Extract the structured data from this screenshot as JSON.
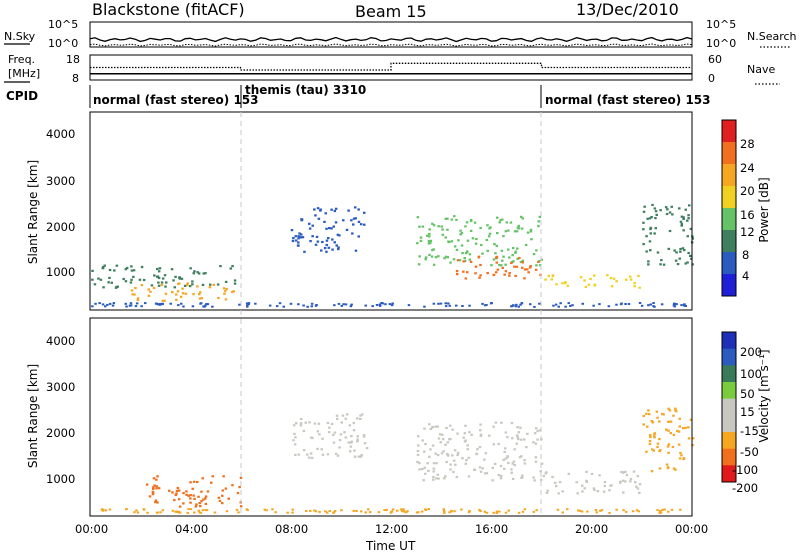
{
  "header": {
    "station": "Blackstone (fitACF)",
    "beam": "Beam 15",
    "date": "13/Dec/2010"
  },
  "noise_panel": {
    "left_label": "N.Sky",
    "right_label": "N.Search",
    "left_ticks": [
      "10^5",
      "10^0"
    ],
    "right_ticks": [
      "10^5",
      "10^0"
    ]
  },
  "freq_panel": {
    "left_label_1": "Freq.",
    "left_label_2": "[MHz]",
    "right_label": "Nave",
    "left_ticks": [
      "18",
      "8"
    ],
    "right_ticks": [
      "60",
      "0"
    ]
  },
  "cpid_panel": {
    "label": "CPID",
    "segments": [
      {
        "text": "normal (fast stereo) 153",
        "start_hour": 0,
        "end_hour": 6
      },
      {
        "text": "themis (tau) 3310",
        "start_hour": 6,
        "end_hour": 18
      },
      {
        "text": "normal (fast stereo) 153",
        "start_hour": 18,
        "end_hour": 24
      }
    ]
  },
  "power_panel": {
    "ylabel": "Slant Range [km]",
    "yticks": [
      "4000",
      "3000",
      "2000",
      "1000"
    ],
    "colorbar_label": "Power [dB]",
    "colorbar_ticks": [
      "28",
      "24",
      "20",
      "16",
      "12",
      "8",
      "4"
    ]
  },
  "velocity_panel": {
    "ylabel": "Slant Range [km]",
    "yticks": [
      "4000",
      "3000",
      "2000",
      "1000"
    ],
    "colorbar_label": "Velocity [m s⁻¹]",
    "colorbar_ticks": [
      "200",
      "100",
      "50",
      "15",
      "-15",
      "-50",
      "-100",
      "-200"
    ]
  },
  "xaxis": {
    "label": "Time UT",
    "ticks": [
      "00:00",
      "04:00",
      "08:00",
      "12:00",
      "16:00",
      "20:00",
      "00:00"
    ]
  },
  "colors": {
    "power_scale": [
      "#1f1fd8",
      "#2a5bbf",
      "#3f7f5f",
      "#66c266",
      "#f0d020",
      "#f5a623",
      "#f07020",
      "#e02020"
    ],
    "velocity_scale": [
      "#e01a1a",
      "#f0701e",
      "#f5a623",
      "#c8c8c0",
      "#c8c8c0",
      "#7acc3e",
      "#3a7a5a",
      "#2a5bbf",
      "#1f2fb8"
    ]
  },
  "chart_data": [
    {
      "type": "line",
      "title": "Blackstone (fitACF)",
      "panel": "noise",
      "x_range_hours": [
        0,
        24
      ],
      "series": [
        {
          "name": "N.Sky",
          "x": [
            0,
            24
          ],
          "values": [
            1.5,
            1.5
          ]
        },
        {
          "name": "N.Search",
          "x": [
            0,
            24
          ],
          "values": [
            0.4,
            0.4
          ]
        }
      ],
      "ylim_log10": [
        0,
        5
      ]
    },
    {
      "type": "line",
      "panel": "frequency / nave",
      "series": [
        {
          "name": "Freq.",
          "x": [
            0,
            6,
            6,
            18,
            18,
            24
          ],
          "values": [
            10.5,
            10.5,
            10.5,
            10.5,
            10.5,
            10.5
          ]
        },
        {
          "name": "Nave",
          "x": [
            0,
            6,
            6,
            12,
            12,
            18,
            18,
            24
          ],
          "values": [
            30,
            30,
            24,
            24,
            40,
            40,
            30,
            30
          ]
        }
      ],
      "ylim_left": [
        8,
        18
      ],
      "ylim_right": [
        0,
        60
      ]
    },
    {
      "type": "heatmap",
      "panel": "power",
      "xlabel": "Time UT",
      "ylabel": "Slant Range [km]",
      "xlim_hours": [
        0,
        24
      ],
      "ylim": [
        180,
        4600
      ],
      "colorbar": {
        "label": "Power [dB]",
        "range": [
          0,
          30
        ],
        "ticks": [
          4,
          8,
          12,
          16,
          20,
          24,
          28
        ]
      },
      "regions": [
        {
          "t": [
            0,
            6
          ],
          "range": [
            700,
            1200
          ],
          "level": 8
        },
        {
          "t": [
            1.5,
            5.8
          ],
          "range": [
            400,
            800
          ],
          "level": 22
        },
        {
          "t": [
            8,
            11
          ],
          "range": [
            1500,
            2500
          ],
          "level": 6
        },
        {
          "t": [
            13,
            18
          ],
          "range": [
            1200,
            2300
          ],
          "level": 14
        },
        {
          "t": [
            14.5,
            18
          ],
          "range": [
            900,
            1400
          ],
          "level": 24
        },
        {
          "t": [
            18,
            22
          ],
          "range": [
            700,
            1000
          ],
          "level": 18
        },
        {
          "t": [
            22,
            24
          ],
          "range": [
            1200,
            2600
          ],
          "level": 8
        }
      ]
    },
    {
      "type": "heatmap",
      "panel": "velocity",
      "xlabel": "Time UT",
      "ylabel": "Slant Range [km]",
      "xlim_hours": [
        0,
        24
      ],
      "ylim": [
        180,
        4600
      ],
      "colorbar": {
        "label": "Velocity [m s⁻¹]",
        "ticks": [
          200,
          100,
          50,
          15,
          -15,
          -50,
          -100,
          -200
        ]
      },
      "regions": [
        {
          "t": [
            2,
            6
          ],
          "range": [
            400,
            1100
          ],
          "velocity": -50
        },
        {
          "t": [
            8,
            11
          ],
          "range": [
            1500,
            2500
          ],
          "velocity": 0
        },
        {
          "t": [
            13,
            18
          ],
          "range": [
            1000,
            2300
          ],
          "velocity": 0
        },
        {
          "t": [
            18,
            22
          ],
          "range": [
            700,
            1200
          ],
          "velocity": -10
        },
        {
          "t": [
            22,
            24
          ],
          "range": [
            1200,
            2600
          ],
          "velocity": -40
        }
      ]
    }
  ]
}
